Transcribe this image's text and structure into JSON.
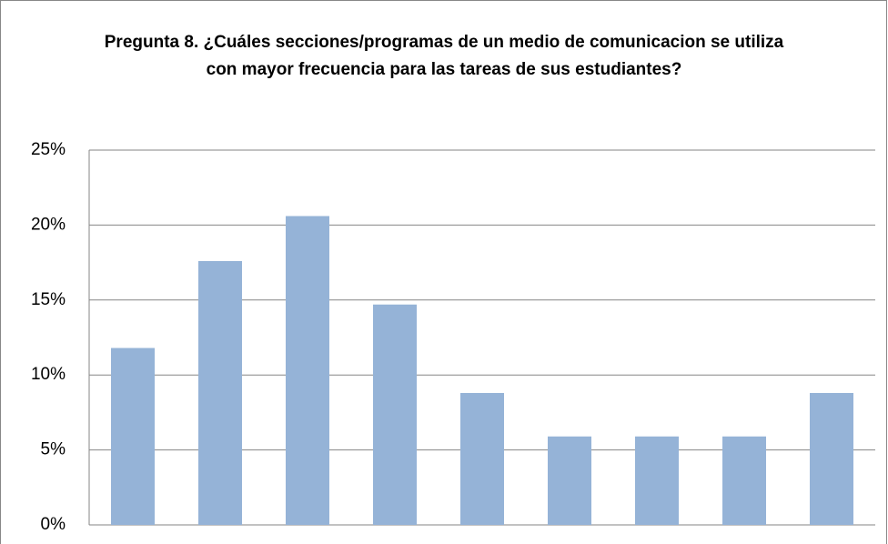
{
  "chart_data": {
    "type": "bar",
    "title": "Pregunta 8. ¿Cuáles secciones/programas de un medio de comunicacion se utiliza con mayor frecuencia para las tareas de sus estudiantes?",
    "categories": [
      null,
      null,
      null,
      null,
      null,
      null,
      null,
      null,
      null
    ],
    "values": [
      11.8,
      17.6,
      20.6,
      14.7,
      8.8,
      5.9,
      5.9,
      5.9,
      8.8
    ],
    "color": "#95b3d7",
    "ylim": [
      0,
      25
    ],
    "yticks": [
      {
        "value": 0,
        "label": "0%"
      },
      {
        "value": 5,
        "label": "5%"
      },
      {
        "value": 10,
        "label": "10%"
      },
      {
        "value": 15,
        "label": "15%"
      },
      {
        "value": 20,
        "label": "20%"
      },
      {
        "value": 25,
        "label": "25%"
      }
    ],
    "grid": true
  }
}
